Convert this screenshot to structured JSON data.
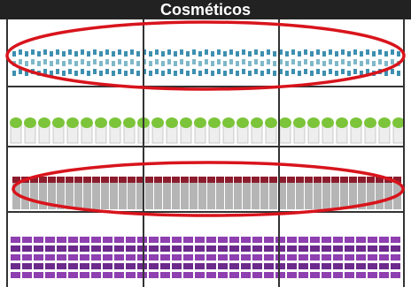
{
  "header": {
    "title": "Cosméticos"
  }
}
